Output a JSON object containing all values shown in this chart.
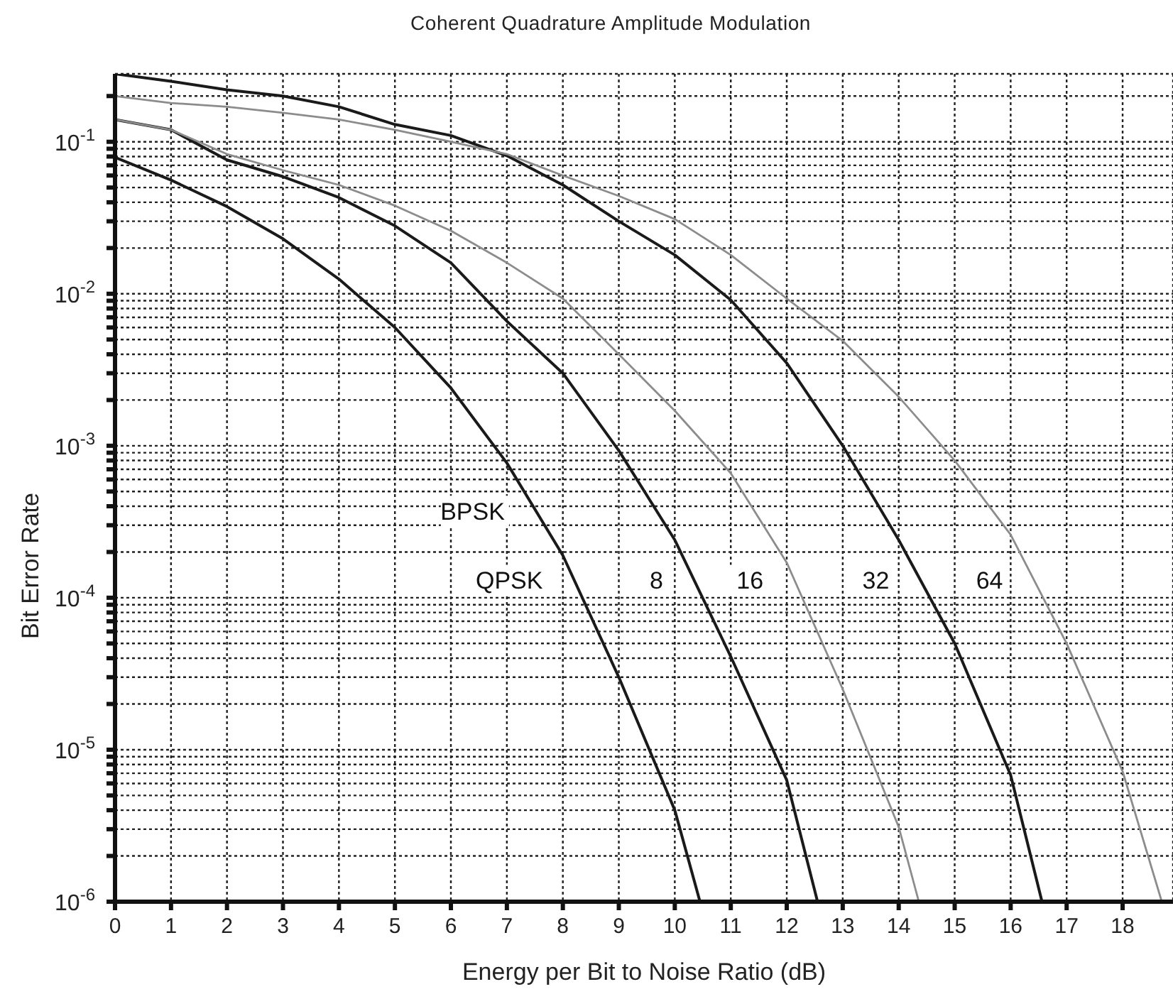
{
  "chart_data": {
    "type": "line",
    "title": "Coherent Quadrature Amplitude Modulation",
    "xlabel": "Energy per Bit to Noise Ratio (dB)",
    "ylabel": "Bit Error Rate",
    "log": "y",
    "grid": true,
    "xlim": [
      0,
      18.9
    ],
    "xticks": [
      0,
      1,
      2,
      3,
      4,
      5,
      6,
      7,
      8,
      9,
      10,
      11,
      12,
      13,
      14,
      15,
      16,
      17,
      18
    ],
    "ylim": [
      1e-06,
      0.28
    ],
    "yticks": [
      {
        "value": 1e-06,
        "label": "10$^{-6}$"
      },
      {
        "value": 2e-06,
        "label": null
      },
      {
        "value": 3e-06,
        "label": null
      },
      {
        "value": 4e-06,
        "label": null
      },
      {
        "value": 5e-06,
        "label": null
      },
      {
        "value": 6e-06,
        "label": null
      },
      {
        "value": 7e-06,
        "label": null
      },
      {
        "value": 8e-06,
        "label": null
      },
      {
        "value": 9e-06,
        "label": null
      },
      {
        "value": 1e-05,
        "label": "10$^{-5}$"
      },
      {
        "value": 2e-05,
        "label": null
      },
      {
        "value": 3e-05,
        "label": null
      },
      {
        "value": 4e-05,
        "label": null
      },
      {
        "value": 5e-05,
        "label": null
      },
      {
        "value": 6e-05,
        "label": null
      },
      {
        "value": 7e-05,
        "label": null
      },
      {
        "value": 8e-05,
        "label": null
      },
      {
        "value": 9e-05,
        "label": null
      },
      {
        "value": 0.0001,
        "label": "10$^{-4}$"
      },
      {
        "value": 0.0002,
        "label": null
      },
      {
        "value": 0.0003,
        "label": null
      },
      {
        "value": 0.0004,
        "label": null
      },
      {
        "value": 0.0005,
        "label": null
      },
      {
        "value": 0.0006,
        "label": null
      },
      {
        "value": 0.0007,
        "label": null
      },
      {
        "value": 0.0008,
        "label": null
      },
      {
        "value": 0.0009,
        "label": null
      },
      {
        "value": 0.001,
        "label": "10$^{-3}$"
      },
      {
        "value": 0.002,
        "label": null
      },
      {
        "value": 0.003,
        "label": null
      },
      {
        "value": 0.004,
        "label": null
      },
      {
        "value": 0.005,
        "label": null
      },
      {
        "value": 0.006,
        "label": null
      },
      {
        "value": 0.007,
        "label": null
      },
      {
        "value": 0.008,
        "label": null
      },
      {
        "value": 0.009,
        "label": null
      },
      {
        "value": 0.01,
        "label": "10$^{-2}$"
      },
      {
        "value": 0.02,
        "label": null
      },
      {
        "value": 0.03,
        "label": null
      },
      {
        "value": 0.04,
        "label": null
      },
      {
        "value": 0.05,
        "label": null
      },
      {
        "value": 0.06,
        "label": null
      },
      {
        "value": 0.07,
        "label": null
      },
      {
        "value": 0.08,
        "label": null
      },
      {
        "value": 0.09,
        "label": null
      },
      {
        "value": 0.1,
        "label": "10$^{-1}$"
      },
      {
        "value": 0.2,
        "label": null
      }
    ],
    "series": [
      {
        "color": "#1a1a1a",
        "x": [
          0,
          1,
          2,
          3,
          4,
          5,
          6,
          7,
          8,
          9,
          10,
          10.45
        ],
        "values": [
          0.079,
          0.056,
          0.0375,
          0.023,
          0.0125,
          0.006,
          0.0024,
          0.00077,
          0.00019,
          3e-05,
          4e-06,
          1e-06
        ]
      },
      {
        "color": "#1a1a1a",
        "x": [
          0,
          1,
          2,
          3,
          4,
          5,
          6,
          7,
          8,
          9,
          10,
          11,
          12,
          12.55
        ],
        "values": [
          0.14,
          0.12,
          0.076,
          0.059,
          0.043,
          0.028,
          0.016,
          0.0066,
          0.003,
          0.00093,
          0.00024,
          4.1e-05,
          6.3e-06,
          1e-06
        ]
      },
      {
        "color": "#8c8c8c",
        "x": [
          0,
          1,
          2,
          3,
          4,
          5,
          6,
          7,
          8,
          9,
          10,
          11,
          12,
          13,
          14,
          14.36
        ],
        "values": [
          0.14,
          0.12,
          0.083,
          0.065,
          0.052,
          0.038,
          0.026,
          0.016,
          0.0093,
          0.004,
          0.0017,
          0.00066,
          0.00017,
          2.5e-05,
          3.1e-06,
          1e-06
        ]
      },
      {
        "color": "#1a1a1a",
        "x": [
          0,
          1,
          2,
          3,
          4,
          5,
          6,
          7,
          8,
          9,
          10,
          11,
          12,
          13,
          14,
          15,
          16,
          16.56
        ],
        "values": [
          0.28,
          0.25,
          0.22,
          0.2,
          0.17,
          0.13,
          0.11,
          0.081,
          0.052,
          0.03,
          0.018,
          0.0091,
          0.0035,
          0.001,
          0.00024,
          5e-05,
          6.8e-06,
          1e-06
        ]
      },
      {
        "color": "#8c8c8c",
        "x": [
          0,
          1,
          2,
          3,
          4,
          5,
          6,
          7,
          8,
          9,
          10,
          11,
          12,
          13,
          14,
          15,
          16,
          17,
          18,
          18.7
        ],
        "values": [
          0.2,
          0.18,
          0.17,
          0.155,
          0.14,
          0.12,
          0.1,
          0.083,
          0.06,
          0.044,
          0.031,
          0.018,
          0.0093,
          0.0049,
          0.0021,
          0.0008,
          0.00026,
          5e-05,
          7.2e-06,
          1e-06
        ]
      }
    ],
    "annotations": [
      {
        "text": "BPSK",
        "x": 7.52,
        "y": 0.00037
      },
      {
        "text": "QPSK",
        "x": 8.2,
        "y": 0.00013
      },
      {
        "text": "8",
        "x": 10.35,
        "y": 0.00013
      },
      {
        "text": "16",
        "x": 12.14,
        "y": 0.00013
      },
      {
        "text": "32",
        "x": 14.39,
        "y": 0.00013
      },
      {
        "text": "64",
        "x": 16.42,
        "y": 0.00013
      }
    ]
  }
}
